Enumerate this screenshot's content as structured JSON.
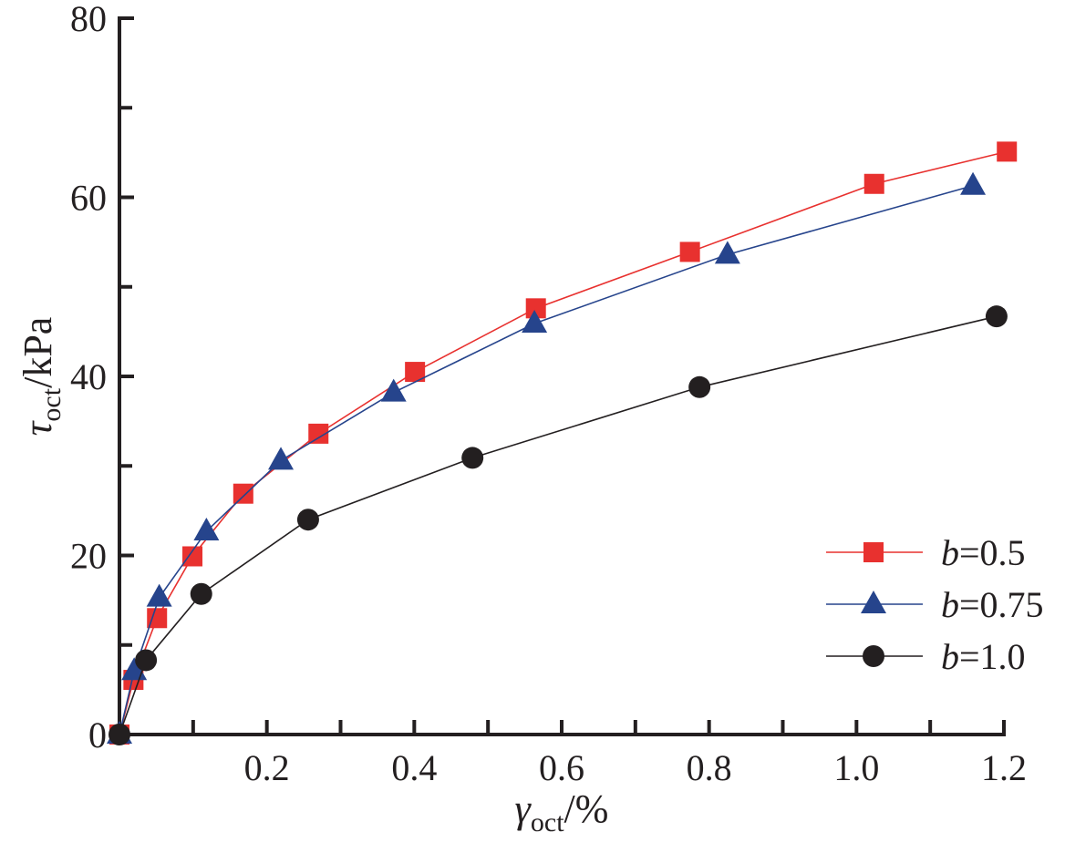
{
  "chart_data": {
    "type": "line",
    "xlabel": {
      "main": "γ",
      "sub": "oct",
      "unit": "/%"
    },
    "ylabel": {
      "main": "τ",
      "sub": "oct",
      "unit": "/kPa"
    },
    "xlim": [
      0,
      1.2
    ],
    "ylim": [
      0,
      80
    ],
    "xticks": [
      0.2,
      0.4,
      0.6,
      0.8,
      1.0,
      1.2
    ],
    "xtick_labels": [
      "0.2",
      "0.4",
      "0.6",
      "0.8",
      "1.0",
      "1.2"
    ],
    "yticks": [
      0,
      20,
      40,
      60,
      80
    ],
    "ytick_labels": [
      "0",
      "20",
      "40",
      "60",
      "80"
    ],
    "grid": false,
    "legend_position": "bottom-right",
    "series": [
      {
        "name": "b=0.5",
        "name_var": "b",
        "name_val": "=0.5",
        "color": "#e8312f",
        "marker": "square",
        "x": [
          0,
          0.019,
          0.051,
          0.099,
          0.168,
          0.27,
          0.401,
          0.565,
          0.774,
          1.024,
          1.204
        ],
        "y": [
          0,
          6.1,
          13.0,
          19.9,
          26.9,
          33.6,
          40.5,
          47.6,
          53.9,
          61.5,
          65.1
        ]
      },
      {
        "name": "b=0.75",
        "name_var": "b",
        "name_val": "=0.75",
        "color": "#26448c",
        "marker": "triangle",
        "x": [
          0,
          0.02,
          0.054,
          0.118,
          0.219,
          0.372,
          0.563,
          0.825,
          1.158
        ],
        "y": [
          0,
          7.1,
          15.3,
          22.7,
          30.6,
          38.2,
          45.9,
          53.6,
          61.3
        ]
      },
      {
        "name": "b=1.0",
        "name_var": "b",
        "name_val": "=1.0",
        "color": "#231f20",
        "marker": "circle",
        "x": [
          0,
          0.036,
          0.111,
          0.256,
          0.479,
          0.787,
          1.19
        ],
        "y": [
          0,
          8.3,
          15.7,
          24.0,
          30.9,
          38.8,
          46.7
        ]
      }
    ]
  }
}
